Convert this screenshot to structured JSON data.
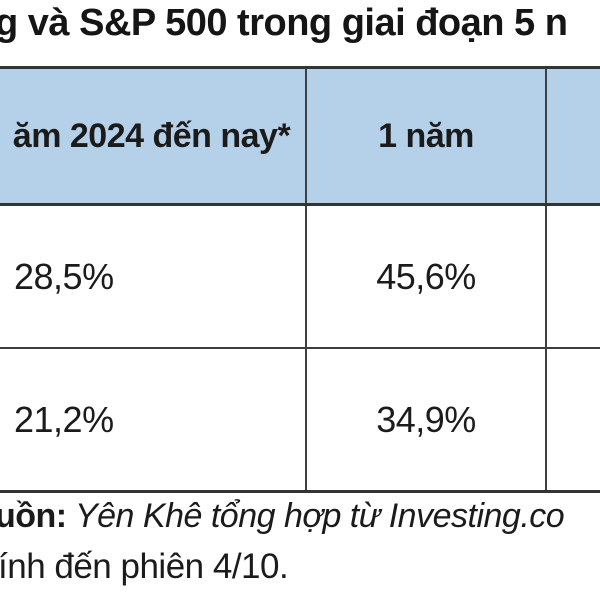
{
  "title": "g và S&P 500 trong giai đoạn 5 n",
  "colors": {
    "header_bg": "#b5d1ea",
    "border": "#3f3f3f",
    "text": "#1b1b1b",
    "background": "#ffffff"
  },
  "table": {
    "columns": [
      {
        "label": "ăm 2024 đến nay*"
      },
      {
        "label": "1 năm"
      },
      {
        "label": ""
      }
    ],
    "rows": [
      {
        "values": [
          "28,5%",
          "45,6%",
          ""
        ]
      },
      {
        "values": [
          "21,2%",
          "34,9%",
          ""
        ]
      }
    ]
  },
  "footer": {
    "source_prefix": "uồn:",
    "source_text": " Yên Khê tổng hợp từ Investing.co",
    "note": "ính đến phiên 4/10."
  },
  "chart_data": {
    "type": "table",
    "title": "g và S&P 500 trong giai đoạn 5 n",
    "columns": [
      "ăm 2024 đến nay*",
      "1 năm",
      ""
    ],
    "rows": [
      [
        "28,5%",
        "45,6%"
      ],
      [
        "21,2%",
        "34,9%"
      ]
    ],
    "values_numeric_percent": [
      [
        28.5,
        45.6
      ],
      [
        21.2,
        34.9
      ]
    ],
    "notes": [
      "uồn: Yên Khê tổng hợp từ Investing.co",
      "ính đến phiên 4/10."
    ],
    "layout_hints": {
      "header_fill": "#b5d1ea",
      "grid": true,
      "cropped_edges": [
        "left",
        "right"
      ]
    }
  }
}
